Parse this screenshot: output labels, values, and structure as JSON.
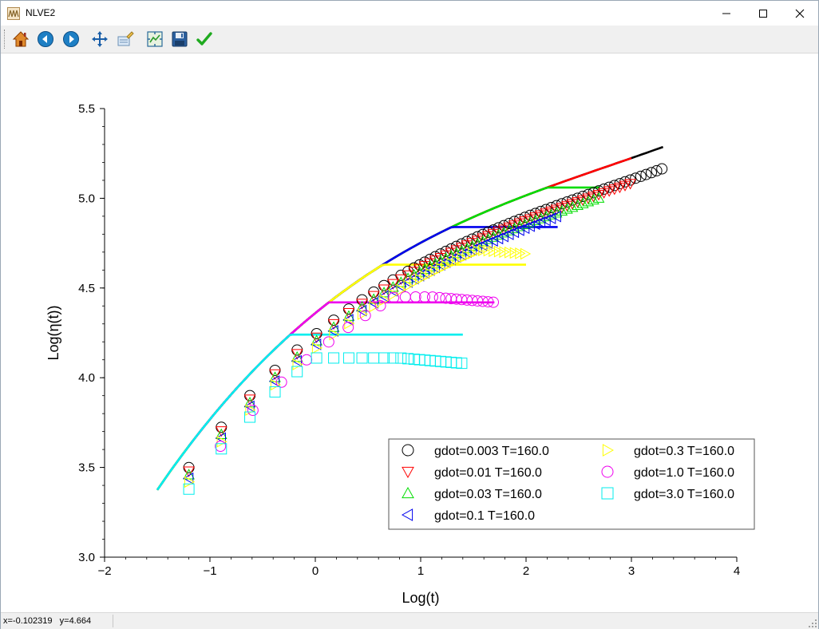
{
  "window": {
    "title": "NLVE2"
  },
  "toolbar": {
    "buttons": [
      {
        "name": "home",
        "icon": "home-icon"
      },
      {
        "name": "back",
        "icon": "arrow-left-icon"
      },
      {
        "name": "forward",
        "icon": "arrow-right-icon"
      },
      {
        "name": "pan",
        "icon": "move-icon"
      },
      {
        "name": "zoom",
        "icon": "zoom-rect-icon"
      },
      {
        "name": "configure",
        "icon": "configure-subplots-icon"
      },
      {
        "name": "save",
        "icon": "save-icon"
      },
      {
        "name": "ok",
        "icon": "checkmark-icon"
      }
    ]
  },
  "status": {
    "x_label": "x=-0.102319",
    "y_label": "y=4.664"
  },
  "chart_data": {
    "type": "line",
    "xlabel": "Log(t)",
    "ylabel": "Log(η(t))",
    "xlim": [
      -2,
      4
    ],
    "ylim": [
      3.0,
      5.5
    ],
    "xticks": [
      -2,
      -1,
      0,
      1,
      2,
      3,
      4
    ],
    "xtick_labels": [
      "−2",
      "−1",
      "0",
      "1",
      "2",
      "3",
      "4"
    ],
    "yticks": [
      3.0,
      3.5,
      4.0,
      4.5,
      5.0,
      5.5
    ],
    "ytick_labels": [
      "3.0",
      "3.5",
      "4.0",
      "4.5",
      "5.0",
      "5.5"
    ],
    "legend_position": "lower-right",
    "series": [
      {
        "name": "gdot=0.003 T=160.0",
        "color": "#000000",
        "marker": "circle",
        "x_end": 3.3,
        "plateau": 5.43,
        "line_plateau": 5.4,
        "line_x_start": -1.5
      },
      {
        "name": "gdot=0.01 T=160.0",
        "color": "#ff0000",
        "marker": "triangle-down",
        "x_end": 3.0,
        "plateau": 5.33,
        "line_plateau": 5.24,
        "line_x_start": -1.5
      },
      {
        "name": "gdot=0.03 T=160.0",
        "color": "#00dd00",
        "marker": "triangle-up",
        "x_end": 2.7,
        "plateau": 5.17,
        "line_plateau": 5.06,
        "line_x_start": -1.5
      },
      {
        "name": "gdot=0.1 T=160.0",
        "color": "#0000ee",
        "marker": "triangle-left",
        "x_end": 2.3,
        "plateau": 4.95,
        "line_plateau": 4.84,
        "line_x_start": -1.5
      },
      {
        "name": "gdot=0.3 T=160.0",
        "color": "#ffff00",
        "marker": "triangle-right",
        "x_end": 2.0,
        "plateau": 4.69,
        "line_plateau": 4.63,
        "line_x_start": -1.5
      },
      {
        "name": "gdot=1.0 T=160.0",
        "color": "#ee00ee",
        "marker": "circle",
        "x_end": 1.7,
        "plateau": 4.42,
        "line_plateau": 4.42,
        "line_x_start": -1.2
      },
      {
        "name": "gdot=3.0 T=160.0",
        "color": "#00eeee",
        "marker": "square",
        "x_end": 1.4,
        "plateau": 4.08,
        "line_plateau": 4.24,
        "line_x_start": -1.5
      }
    ]
  }
}
